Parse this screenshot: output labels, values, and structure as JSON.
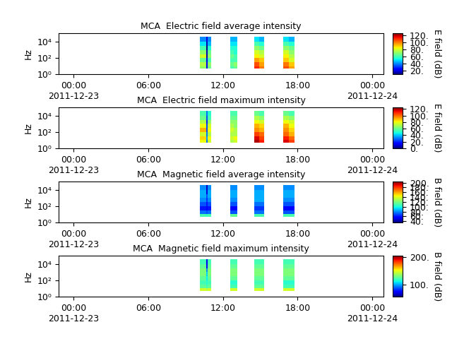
{
  "chart_data": [
    {
      "type": "heatmap",
      "title": "MCA  Electric field average intensity",
      "y_label": "Hz",
      "log": "y",
      "colorbar_label": "E field (dB)",
      "xlim": [
        "2011-12-22 22:48",
        "2011-12-24 00:54"
      ],
      "xticks": [
        {
          "value": "2011-12-23 00:00",
          "label": "00:00\n2011-12-23"
        },
        {
          "value": "2011-12-23 06:00",
          "label": "06:00"
        },
        {
          "value": "2011-12-23 12:00",
          "label": "12:00"
        },
        {
          "value": "2011-12-23 18:00",
          "label": "18:00"
        },
        {
          "value": "2011-12-24 00:00",
          "label": "00:00\n2011-12-24"
        }
      ],
      "ylim": [
        1,
        110000
      ],
      "yticks": [
        {
          "value": 1,
          "label": "10⁰"
        },
        {
          "value": 100,
          "label": "10²"
        },
        {
          "value": 10000,
          "label": "10⁴"
        }
      ],
      "x_edges": [
        "2011-12-23 10:08",
        "2011-12-23 10:38",
        "2011-12-23 10:45",
        "2011-12-23 11:05",
        "2011-12-23 12:37",
        "2011-12-23 12:54",
        "2011-12-23 13:11",
        "2011-12-23 14:32",
        "2011-12-23 14:56",
        "2011-12-23 15:20",
        "2011-12-23 16:52",
        "2011-12-23 17:18",
        "2011-12-23 17:46"
      ],
      "y_edges": [
        5,
        10,
        30,
        100,
        300,
        1000,
        3000,
        10000,
        40000
      ],
      "cells": [
        [
          70,
          20,
          65,
          null,
          60,
          65,
          null,
          110,
          100,
          null,
          105,
          95
        ],
        [
          75,
          25,
          70,
          null,
          65,
          70,
          null,
          105,
          95,
          null,
          100,
          90
        ],
        [
          65,
          20,
          60,
          null,
          60,
          60,
          null,
          95,
          90,
          null,
          90,
          80
        ],
        [
          80,
          15,
          70,
          null,
          65,
          60,
          null,
          85,
          80,
          null,
          85,
          75
        ],
        [
          70,
          15,
          65,
          null,
          60,
          55,
          null,
          80,
          75,
          null,
          80,
          70
        ],
        [
          60,
          10,
          55,
          null,
          55,
          55,
          null,
          70,
          65,
          null,
          70,
          65
        ],
        [
          50,
          15,
          45,
          null,
          50,
          50,
          null,
          60,
          55,
          null,
          60,
          55
        ],
        [
          40,
          20,
          40,
          null,
          45,
          45,
          null,
          50,
          45,
          null,
          50,
          45
        ]
      ],
      "colorbar_range": [
        10,
        125
      ],
      "colorbar_ticks": [
        {
          "value": 20,
          "label": "20."
        },
        {
          "value": 40,
          "label": "40."
        },
        {
          "value": 60,
          "label": "60."
        },
        {
          "value": 80,
          "label": "80."
        },
        {
          "value": 100,
          "label": "100."
        },
        {
          "value": 120,
          "label": "120."
        }
      ]
    },
    {
      "type": "heatmap",
      "title": "MCA  Electric field maximum intensity",
      "y_label": "Hz",
      "log": "y",
      "colorbar_label": "E field (dB)",
      "xlim": [
        "2011-12-22 22:48",
        "2011-12-24 00:54"
      ],
      "xticks": [
        {
          "value": "2011-12-23 00:00",
          "label": "00:00\n2011-12-23"
        },
        {
          "value": "2011-12-23 06:00",
          "label": "06:00"
        },
        {
          "value": "2011-12-23 12:00",
          "label": "12:00"
        },
        {
          "value": "2011-12-23 18:00",
          "label": "18:00"
        },
        {
          "value": "2011-12-24 00:00",
          "label": "00:00\n2011-12-24"
        }
      ],
      "ylim": [
        1,
        110000
      ],
      "yticks": [
        {
          "value": 1,
          "label": "10⁰"
        },
        {
          "value": 100,
          "label": "10²"
        },
        {
          "value": 10000,
          "label": "10⁴"
        }
      ],
      "x_edges": [
        "2011-12-23 10:08",
        "2011-12-23 10:38",
        "2011-12-23 10:45",
        "2011-12-23 11:05",
        "2011-12-23 12:37",
        "2011-12-23 12:54",
        "2011-12-23 13:11",
        "2011-12-23 14:32",
        "2011-12-23 14:56",
        "2011-12-23 15:20",
        "2011-12-23 16:52",
        "2011-12-23 17:18",
        "2011-12-23 17:46"
      ],
      "y_edges": [
        5,
        10,
        30,
        100,
        300,
        1000,
        3000,
        10000,
        40000
      ],
      "cells": [
        [
          80,
          30,
          75,
          null,
          70,
          75,
          null,
          120,
          110,
          null,
          115,
          105
        ],
        [
          85,
          35,
          80,
          null,
          75,
          80,
          null,
          115,
          105,
          null,
          110,
          100
        ],
        [
          75,
          30,
          70,
          null,
          70,
          70,
          null,
          105,
          100,
          null,
          100,
          90
        ],
        [
          90,
          25,
          80,
          null,
          75,
          70,
          null,
          95,
          90,
          null,
          95,
          85
        ],
        [
          80,
          25,
          75,
          null,
          70,
          65,
          null,
          90,
          85,
          null,
          90,
          80
        ],
        [
          70,
          20,
          65,
          null,
          65,
          65,
          null,
          80,
          75,
          null,
          80,
          75
        ],
        [
          60,
          25,
          55,
          null,
          60,
          60,
          null,
          70,
          65,
          null,
          70,
          65
        ],
        [
          55,
          30,
          50,
          null,
          55,
          55,
          null,
          60,
          55,
          null,
          60,
          55
        ]
      ],
      "colorbar_range": [
        0,
        125
      ],
      "colorbar_ticks": [
        {
          "value": 0,
          "label": "0."
        },
        {
          "value": 20,
          "label": "20."
        },
        {
          "value": 40,
          "label": "40."
        },
        {
          "value": 60,
          "label": "60."
        },
        {
          "value": 80,
          "label": "80."
        },
        {
          "value": 100,
          "label": "100."
        },
        {
          "value": 120,
          "label": "120."
        }
      ]
    },
    {
      "type": "heatmap",
      "title": "MCA  Magnetic field average intensity",
      "y_label": "Hz",
      "log": "y",
      "colorbar_label": "B field (dB)",
      "xlim": [
        "2011-12-22 22:48",
        "2011-12-24 00:54"
      ],
      "xticks": [
        {
          "value": "2011-12-23 00:00",
          "label": "00:00\n2011-12-23"
        },
        {
          "value": "2011-12-23 06:00",
          "label": "06:00"
        },
        {
          "value": "2011-12-23 12:00",
          "label": "12:00"
        },
        {
          "value": "2011-12-23 18:00",
          "label": "18:00"
        },
        {
          "value": "2011-12-24 00:00",
          "label": "00:00\n2011-12-24"
        }
      ],
      "ylim": [
        1,
        110000
      ],
      "yticks": [
        {
          "value": 1,
          "label": "10⁰"
        },
        {
          "value": 100,
          "label": "10²"
        },
        {
          "value": 10000,
          "label": "10⁴"
        }
      ],
      "x_edges": [
        "2011-12-23 10:08",
        "2011-12-23 10:38",
        "2011-12-23 10:45",
        "2011-12-23 11:05",
        "2011-12-23 12:37",
        "2011-12-23 12:54",
        "2011-12-23 13:11",
        "2011-12-23 14:32",
        "2011-12-23 14:56",
        "2011-12-23 15:20",
        "2011-12-23 16:52",
        "2011-12-23 17:18",
        "2011-12-23 17:46"
      ],
      "y_edges": [
        5,
        10,
        30,
        100,
        300,
        1000,
        3000,
        10000,
        40000
      ],
      "cells": [
        [
          110,
          105,
          110,
          null,
          115,
          115,
          null,
          110,
          110,
          null,
          110,
          110
        ],
        [
          75,
          70,
          75,
          null,
          70,
          70,
          null,
          75,
          75,
          null,
          70,
          70
        ],
        [
          60,
          55,
          60,
          null,
          55,
          55,
          null,
          65,
          65,
          null,
          55,
          55
        ],
        [
          70,
          60,
          70,
          null,
          70,
          70,
          null,
          75,
          75,
          null,
          70,
          70
        ],
        [
          80,
          65,
          80,
          null,
          80,
          80,
          null,
          85,
          85,
          null,
          80,
          80
        ],
        [
          85,
          70,
          85,
          null,
          85,
          85,
          null,
          85,
          85,
          null,
          85,
          85
        ],
        [
          85,
          50,
          85,
          null,
          85,
          85,
          null,
          85,
          85,
          null,
          85,
          85
        ],
        [
          80,
          45,
          80,
          null,
          80,
          80,
          null,
          80,
          80,
          null,
          80,
          80
        ]
      ],
      "colorbar_range": [
        35,
        205
      ],
      "colorbar_ticks": [
        {
          "value": 40,
          "label": "40."
        },
        {
          "value": 60,
          "label": "60."
        },
        {
          "value": 80,
          "label": "80."
        },
        {
          "value": 100,
          "label": "100."
        },
        {
          "value": 120,
          "label": "120."
        },
        {
          "value": 140,
          "label": "140."
        },
        {
          "value": 160,
          "label": "160."
        },
        {
          "value": 180,
          "label": "180."
        },
        {
          "value": 200,
          "label": "200."
        }
      ]
    },
    {
      "type": "heatmap",
      "title": "MCA  Magnetic field maximum intensity",
      "y_label": "Hz",
      "log": "y",
      "colorbar_label": "B field (dB)",
      "xlim": [
        "2011-12-22 22:48",
        "2011-12-24 00:54"
      ],
      "xticks": [
        {
          "value": "2011-12-23 00:00",
          "label": "00:00\n2011-12-23"
        },
        {
          "value": "2011-12-23 06:00",
          "label": "06:00"
        },
        {
          "value": "2011-12-23 12:00",
          "label": "12:00"
        },
        {
          "value": "2011-12-23 18:00",
          "label": "18:00"
        },
        {
          "value": "2011-12-24 00:00",
          "label": "00:00\n2011-12-24"
        }
      ],
      "ylim": [
        1,
        110000
      ],
      "yticks": [
        {
          "value": 1,
          "label": "10⁰"
        },
        {
          "value": 100,
          "label": "10²"
        },
        {
          "value": 10000,
          "label": "10⁴"
        }
      ],
      "x_edges": [
        "2011-12-23 10:08",
        "2011-12-23 10:38",
        "2011-12-23 10:45",
        "2011-12-23 11:05",
        "2011-12-23 12:37",
        "2011-12-23 12:54",
        "2011-12-23 13:11",
        "2011-12-23 14:32",
        "2011-12-23 14:56",
        "2011-12-23 15:20",
        "2011-12-23 16:52",
        "2011-12-23 17:18",
        "2011-12-23 17:46"
      ],
      "y_edges": [
        5,
        10,
        30,
        100,
        300,
        1000,
        3000,
        10000,
        40000
      ],
      "cells": [
        [
          145,
          140,
          145,
          null,
          145,
          145,
          null,
          145,
          145,
          null,
          145,
          145
        ],
        [
          125,
          120,
          125,
          null,
          120,
          120,
          null,
          125,
          125,
          null,
          120,
          120
        ],
        [
          120,
          115,
          120,
          null,
          115,
          115,
          null,
          120,
          120,
          null,
          115,
          115
        ],
        [
          125,
          110,
          125,
          null,
          125,
          125,
          null,
          125,
          125,
          null,
          125,
          125
        ],
        [
          130,
          105,
          130,
          null,
          130,
          130,
          null,
          130,
          130,
          null,
          130,
          130
        ],
        [
          130,
          95,
          130,
          null,
          130,
          130,
          null,
          130,
          130,
          null,
          130,
          130
        ],
        [
          125,
          75,
          125,
          null,
          125,
          125,
          null,
          125,
          125,
          null,
          125,
          125
        ],
        [
          120,
          70,
          120,
          null,
          120,
          120,
          null,
          120,
          120,
          null,
          120,
          120
        ]
      ],
      "colorbar_range": [
        55,
        205
      ],
      "colorbar_ticks": [
        {
          "value": 100,
          "label": "100."
        },
        {
          "value": 200,
          "label": "200."
        }
      ]
    }
  ]
}
